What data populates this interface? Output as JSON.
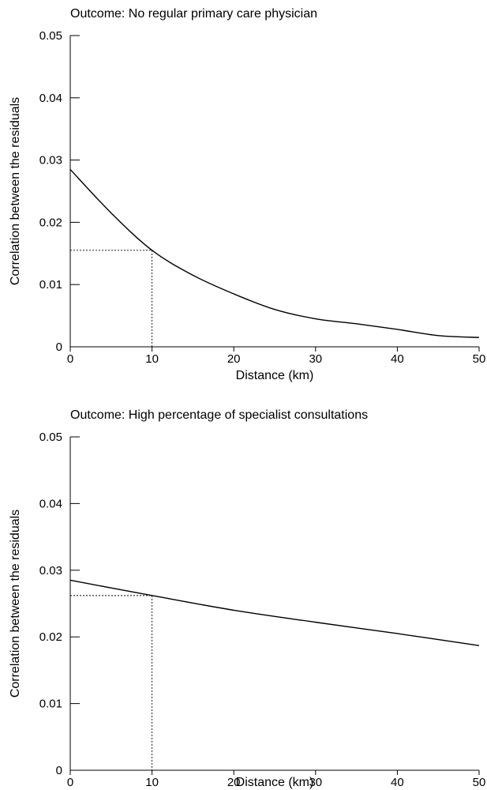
{
  "chart_data": [
    {
      "type": "line",
      "title": "Outcome: No regular primary care physician",
      "xlabel": "Distance (km)",
      "ylabel": "Correlation between the residuals",
      "xlim": [
        0,
        50
      ],
      "ylim": [
        0,
        0.05
      ],
      "xticks": [
        0,
        10,
        20,
        30,
        40,
        50
      ],
      "yticks": [
        "0",
        "0.01",
        "0.02",
        "0.03",
        "0.04",
        "0.05"
      ],
      "grid": false,
      "series": [
        {
          "x": [
            0,
            5,
            10,
            15,
            20,
            25,
            30,
            35,
            40,
            45,
            50
          ],
          "y": [
            0.0285,
            0.0215,
            0.0155,
            0.0115,
            0.0085,
            0.006,
            0.0045,
            0.0037,
            0.0028,
            0.0018,
            0.0015
          ]
        }
      ],
      "reference": {
        "x": 10,
        "y": 0.0155
      }
    },
    {
      "type": "line",
      "title": "Outcome: High percentage of specialist consultations",
      "xlabel": "Distance (km)",
      "ylabel": "Correlation between the residuals",
      "xlim": [
        0,
        50
      ],
      "ylim": [
        0,
        0.05
      ],
      "xticks": [
        0,
        10,
        20,
        30,
        40,
        50
      ],
      "yticks": [
        "0",
        "0.01",
        "0.02",
        "0.03",
        "0.04",
        "0.05"
      ],
      "grid": false,
      "series": [
        {
          "x": [
            0,
            10,
            20,
            30,
            40,
            50
          ],
          "y": [
            0.0285,
            0.0262,
            0.024,
            0.0222,
            0.0205,
            0.0187
          ]
        }
      ],
      "reference": {
        "x": 10,
        "y": 0.0262
      }
    }
  ]
}
